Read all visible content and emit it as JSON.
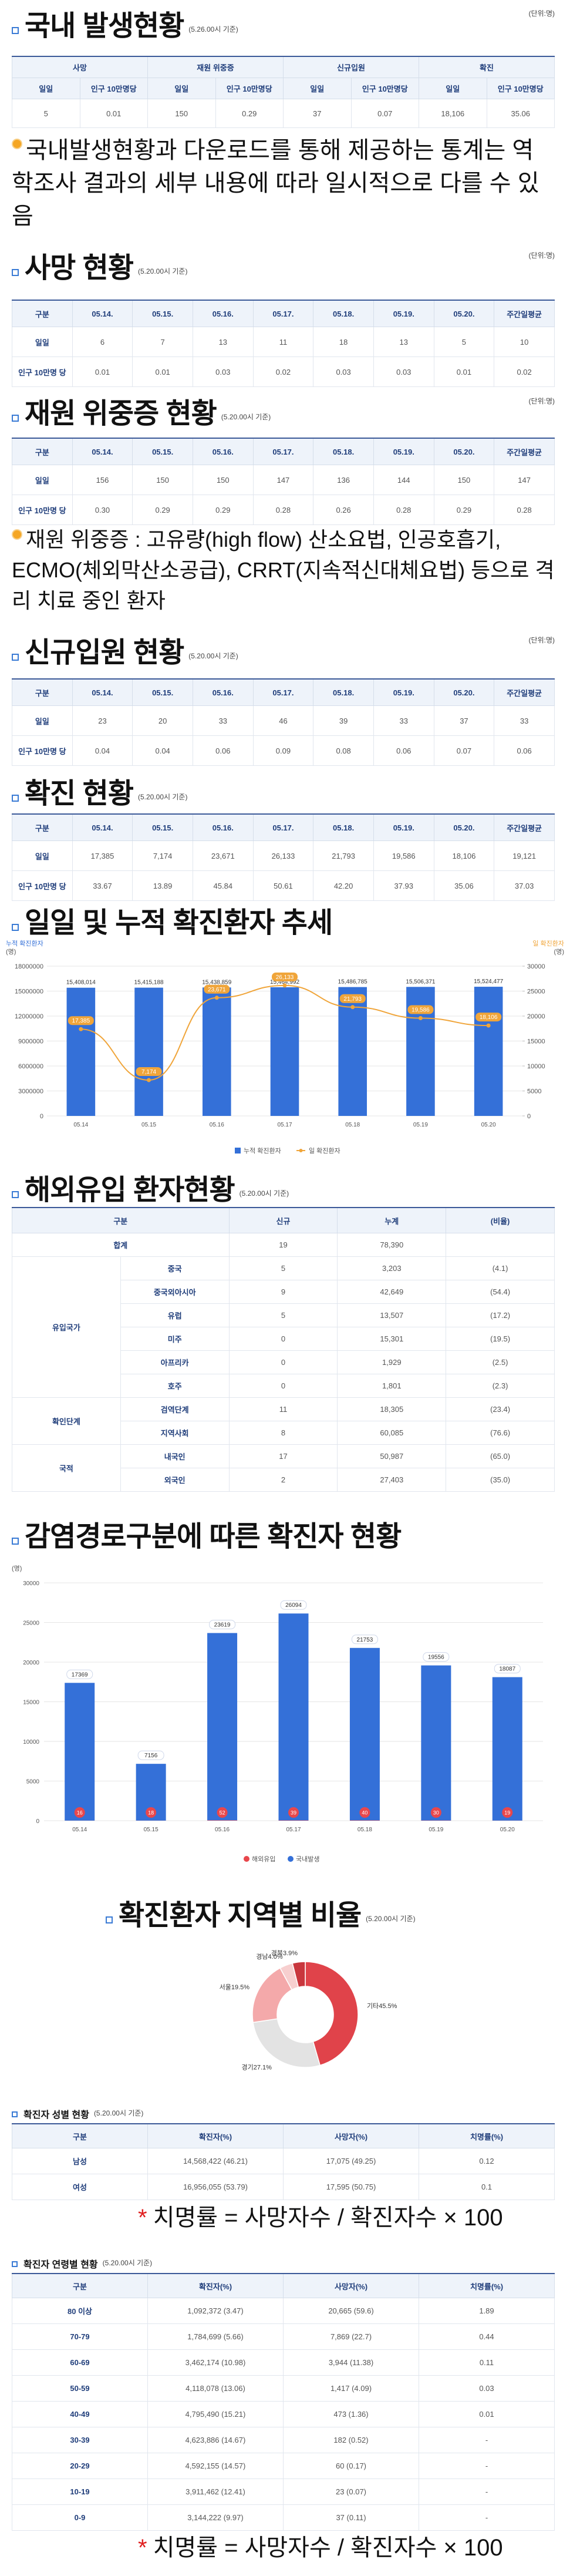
{
  "domestic": {
    "title": "국내 발생현황",
    "basis": "(5.26.00시 기준)",
    "unit": "(단위:명)",
    "groups": [
      "사망",
      "재원 위중증",
      "신규입원",
      "확진"
    ],
    "subheaders": [
      "일일",
      "인구 10만명당",
      "일일",
      "인구 10만명당",
      "일일",
      "인구 10만명당",
      "일일",
      "인구 10만명당"
    ],
    "row": [
      "5",
      "0.01",
      "150",
      "0.29",
      "37",
      "0.07",
      "18,106",
      "35.06"
    ]
  },
  "notes": {
    "domestic": {
      "text": "국내발생현황과 다운로드를 통해 제공하는 통계는 역학조사 결과의 세부 내용에 따라 일시적으로 다를 수 있음"
    },
    "critical": {
      "text": "재원 위중증 : 고유량(high flow) 산소요법, 인공호흡기, ECMO(체외막산소공급), CRRT(지속적신대체요법) 등으로 격리 치료 중인 환자"
    },
    "fatality_sex": {
      "mark": "*",
      "text": "치명률 = 사망자수 / 확진자수 × 100"
    },
    "fatality_age": {
      "mark": "*",
      "text": "치명률 = 사망자수 / 확진자수 × 100"
    }
  },
  "tables": {
    "deaths": {
      "title": "사망 현황",
      "basis": "(5.20.00시 기준)",
      "unit": "(단위:명)",
      "headers": [
        "구분",
        "05.14.",
        "05.15.",
        "05.16.",
        "05.17.",
        "05.18.",
        "05.19.",
        "05.20.",
        "주간일평균"
      ],
      "rows": [
        [
          "일일",
          "6",
          "7",
          "13",
          "11",
          "18",
          "13",
          "5",
          "10"
        ],
        [
          "인구 10만명 당",
          "0.01",
          "0.01",
          "0.03",
          "0.02",
          "0.03",
          "0.03",
          "0.01",
          "0.02"
        ]
      ]
    },
    "critical": {
      "title": "재원 위중증 현황",
      "basis": "(5.20.00시 기준)",
      "unit": "(단위:명)",
      "headers": [
        "구분",
        "05.14.",
        "05.15.",
        "05.16.",
        "05.17.",
        "05.18.",
        "05.19.",
        "05.20.",
        "주간일평균"
      ],
      "rows": [
        [
          "일일",
          "156",
          "150",
          "150",
          "147",
          "136",
          "144",
          "150",
          "147"
        ],
        [
          "인구 10만명 당",
          "0.30",
          "0.29",
          "0.29",
          "0.28",
          "0.26",
          "0.28",
          "0.29",
          "0.28"
        ]
      ]
    },
    "admissions": {
      "title": "신규입원 현황",
      "basis": "(5.20.00시 기준)",
      "unit": "(단위:명)",
      "headers": [
        "구분",
        "05.14.",
        "05.15.",
        "05.16.",
        "05.17.",
        "05.18.",
        "05.19.",
        "05.20.",
        "주간일평균"
      ],
      "rows": [
        [
          "일일",
          "23",
          "20",
          "33",
          "46",
          "39",
          "33",
          "37",
          "33"
        ],
        [
          "인구 10만명 당",
          "0.04",
          "0.04",
          "0.06",
          "0.09",
          "0.08",
          "0.06",
          "0.07",
          "0.06"
        ]
      ]
    },
    "confirmed": {
      "title": "확진 현황",
      "basis": "(5.20.00시 기준)",
      "headers": [
        "구분",
        "05.14.",
        "05.15.",
        "05.16.",
        "05.17.",
        "05.18.",
        "05.19.",
        "05.20.",
        "주간일평균"
      ],
      "rows": [
        [
          "일일",
          "17,385",
          "7,174",
          "23,671",
          "26,133",
          "21,793",
          "19,586",
          "18,106",
          "19,121"
        ],
        [
          "인구 10만명 당",
          "33.67",
          "13.89",
          "45.84",
          "50.61",
          "42.20",
          "37.93",
          "35.06",
          "37.03"
        ]
      ]
    },
    "gender": {
      "title": "확진자 성별 현황",
      "basis": "(5.20.00시 기준)",
      "headers": [
        "구분",
        "확진자(%)",
        "사망자(%)",
        "치명률(%)"
      ],
      "rows": [
        [
          "남성",
          "14,568,422 (46.21)",
          "17,075 (49.25)",
          "0.12"
        ],
        [
          "여성",
          "16,956,055 (53.79)",
          "17,595 (50.75)",
          "0.1"
        ]
      ]
    },
    "age": {
      "title": "확진자 연령별 현황",
      "basis": "(5.20.00시 기준)",
      "headers": [
        "구분",
        "확진자(%)",
        "사망자(%)",
        "치명률(%)"
      ],
      "rows": [
        [
          "80 이상",
          "1,092,372 (3.47)",
          "20,665 (59.6)",
          "1.89"
        ],
        [
          "70-79",
          "1,784,699 (5.66)",
          "7,869 (22.7)",
          "0.44"
        ],
        [
          "60-69",
          "3,462,174 (10.98)",
          "3,944 (11.38)",
          "0.11"
        ],
        [
          "50-59",
          "4,118,078 (13.06)",
          "1,417 (4.09)",
          "0.03"
        ],
        [
          "40-49",
          "4,795,490 (15.21)",
          "473 (1.36)",
          "0.01"
        ],
        [
          "30-39",
          "4,623,886 (14.67)",
          "182 (0.52)",
          "-"
        ],
        [
          "20-29",
          "4,592,155 (14.57)",
          "60 (0.17)",
          "-"
        ],
        [
          "10-19",
          "3,911,462 (12.41)",
          "23 (0.07)",
          "-"
        ],
        [
          "0-9",
          "3,144,222 (9.97)",
          "37 (0.11)",
          "-"
        ]
      ]
    }
  },
  "overseas": {
    "title": "해외유입 환자현황",
    "basis": "(5.20.00시 기준)",
    "headers": [
      "구분",
      "신규",
      "누계",
      "(비율)"
    ],
    "total": [
      "합계",
      "19",
      "78,390"
    ],
    "groups": [
      {
        "name": "유입국가",
        "rows": [
          [
            "중국",
            "5",
            "3,203",
            "(4.1)"
          ],
          [
            "중국외아시아",
            "9",
            "42,649",
            "(54.4)"
          ],
          [
            "유럽",
            "5",
            "13,507",
            "(17.2)"
          ],
          [
            "미주",
            "0",
            "15,301",
            "(19.5)"
          ],
          [
            "아프리카",
            "0",
            "1,929",
            "(2.5)"
          ],
          [
            "호주",
            "0",
            "1,801",
            "(2.3)"
          ]
        ]
      },
      {
        "name": "확인단계",
        "rows": [
          [
            "검역단계",
            "11",
            "18,305",
            "(23.4)"
          ],
          [
            "지역사회",
            "8",
            "60,085",
            "(76.6)"
          ]
        ]
      },
      {
        "name": "국적",
        "rows": [
          [
            "내국인",
            "17",
            "50,987",
            "(65.0)"
          ],
          [
            "외국인",
            "2",
            "27,403",
            "(35.0)"
          ]
        ]
      }
    ]
  },
  "chart_data": [
    {
      "type": "bar-line",
      "title": "일일 및 누적 확진환자 추세",
      "y_label": "누적 확진환자",
      "y_unit": "(명)",
      "y2_label": "일 확진환자",
      "y2_unit": "(명)",
      "categories": [
        "05.14",
        "05.15",
        "05.16",
        "05.17",
        "05.18",
        "05.19",
        "05.20"
      ],
      "series": [
        {
          "name": "누적 확진환자",
          "color": "#3470d8",
          "values": [
            15408014,
            15415188,
            15438859,
            15464992,
            15486785,
            15506371,
            15524477
          ],
          "value_labels": [
            "15,408,014",
            "15,415,188",
            "15,438,859",
            "15,464,992",
            "15,486,785",
            "15,506,371",
            "15,524,477"
          ]
        },
        {
          "name": "일 확진환자",
          "color": "#f0a53a",
          "axis": "y2",
          "values": [
            17385,
            7174,
            23671,
            26133,
            21793,
            19586,
            18106
          ],
          "value_labels": [
            "17,385",
            "7,174",
            "23,671",
            "26,133",
            "21,793",
            "19,586",
            "18,106"
          ]
        }
      ],
      "ylim": [
        0,
        18000000
      ],
      "yticks": [
        0,
        3000000,
        6000000,
        9000000,
        12000000,
        15000000,
        18000000
      ],
      "y2lim": [
        0,
        30000
      ],
      "y2ticks": [
        0,
        5000,
        10000,
        15000,
        20000,
        25000,
        30000
      ],
      "grid": true,
      "legend": "bottom"
    },
    {
      "type": "stacked-bar",
      "title": "감염경로구분에 따른 확진자 현황",
      "y_unit": "(명)",
      "categories": [
        "05.14",
        "05.15",
        "05.16",
        "05.17",
        "05.18",
        "05.19",
        "05.20"
      ],
      "series": [
        {
          "name": "해외유입",
          "color": "#e8474c",
          "values": [
            16,
            18,
            52,
            39,
            40,
            30,
            19
          ]
        },
        {
          "name": "국내발생",
          "color": "#3470d8",
          "values": [
            17369,
            7156,
            23619,
            26094,
            21753,
            19556,
            18087
          ]
        }
      ],
      "ylim": [
        0,
        30000
      ],
      "yticks": [
        0,
        5000,
        10000,
        15000,
        20000,
        25000,
        30000
      ],
      "grid": true,
      "legend": "bottom"
    },
    {
      "type": "donut",
      "title": "확진환자 지역별 비율",
      "basis": "(5.20.00시 기준)",
      "categories": [
        "기타",
        "경기",
        "서울",
        "경남",
        "경북"
      ],
      "values": [
        45.5,
        27.1,
        19.5,
        4.0,
        3.9
      ],
      "value_labels": [
        "45.5%",
        "27.1%",
        "19.5%",
        "4.0%",
        "3.9%"
      ],
      "colors": [
        "#e0434a",
        "#e3e3e3",
        "#f4a9aa",
        "#f7cfcf",
        "#c9363d"
      ]
    }
  ]
}
